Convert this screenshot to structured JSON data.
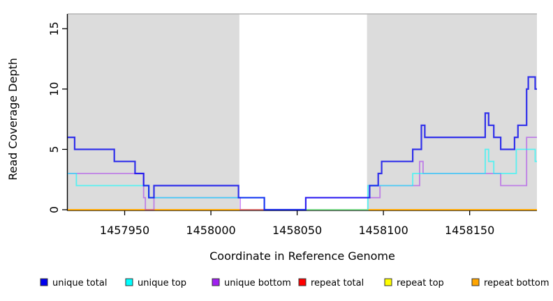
{
  "figure": {
    "xlabel": "Coordinate in Reference Genome",
    "ylabel": "Read Coverage Depth"
  },
  "chart_data": {
    "type": "line",
    "subtype": "step-coverage",
    "title": "",
    "xlabel": "Coordinate in Reference Genome",
    "ylabel": "Read Coverage Depth",
    "xlim": [
      1457917,
      1458189
    ],
    "ylim": [
      0,
      16.3
    ],
    "x_ticks": [
      1457950,
      1458000,
      1458050,
      1458100,
      1458150
    ],
    "y_ticks": [
      0,
      5,
      10,
      15
    ],
    "grid": false,
    "background_color": "#ffffff",
    "shaded_region_color": "#DCDCDC",
    "shaded_regions": [
      {
        "name": "left-shaded-region",
        "x_start": 1457917,
        "x_end": 1458016.5
      },
      {
        "name": "right-shaded-region",
        "x_start": 1458090.5,
        "x_end": 1458189
      }
    ],
    "series": [
      {
        "name": "repeat total",
        "color": "#FF0000",
        "opacity": 0.9,
        "width": 1.6,
        "steps": [
          [
            1457917,
            0
          ]
        ]
      },
      {
        "name": "repeat top",
        "color": "#FFFF00",
        "opacity": 0.9,
        "width": 1.6,
        "steps": [
          [
            1457917,
            0
          ]
        ]
      },
      {
        "name": "repeat bottom",
        "color": "#FFA500",
        "opacity": 0.95,
        "width": 2,
        "steps": [
          [
            1457917,
            0
          ]
        ]
      },
      {
        "name": "unique bottom",
        "color": "#A020F0",
        "opacity": 0.5,
        "width": 1.8,
        "steps": [
          [
            1457917,
            3
          ],
          [
            1457961,
            1
          ],
          [
            1457962,
            0
          ],
          [
            1457967,
            1
          ],
          [
            1458017,
            0
          ],
          [
            1458055,
            1
          ],
          [
            1458098,
            2
          ],
          [
            1458121,
            4
          ],
          [
            1458123,
            3
          ],
          [
            1458168,
            2
          ],
          [
            1458183,
            6
          ]
        ]
      },
      {
        "name": "unique top",
        "color": "#00FFFF",
        "opacity": 0.6,
        "width": 1.8,
        "steps": [
          [
            1457917,
            3
          ],
          [
            1457922,
            2
          ],
          [
            1457964,
            1
          ],
          [
            1458031,
            0
          ],
          [
            1458091,
            2
          ],
          [
            1458117,
            3
          ],
          [
            1458159,
            5
          ],
          [
            1458161,
            4
          ],
          [
            1458164,
            3
          ],
          [
            1458177,
            5
          ],
          [
            1458188,
            4
          ]
        ]
      },
      {
        "name": "unique total",
        "color": "#0000EE",
        "opacity": 0.78,
        "width": 2.2,
        "steps": [
          [
            1457917,
            6
          ],
          [
            1457921,
            5
          ],
          [
            1457944,
            4
          ],
          [
            1457956,
            3
          ],
          [
            1457961,
            2
          ],
          [
            1457964,
            1
          ],
          [
            1457967,
            2
          ],
          [
            1458016,
            1
          ],
          [
            1458031,
            0
          ],
          [
            1458055,
            1
          ],
          [
            1458092,
            2
          ],
          [
            1458097,
            3
          ],
          [
            1458099,
            4
          ],
          [
            1458117,
            5
          ],
          [
            1458122,
            7
          ],
          [
            1458124,
            6
          ],
          [
            1458159,
            8
          ],
          [
            1458161,
            7
          ],
          [
            1458164,
            6
          ],
          [
            1458168,
            5
          ],
          [
            1458176,
            6
          ],
          [
            1458178,
            7
          ],
          [
            1458183,
            10
          ],
          [
            1458184,
            11
          ],
          [
            1458188,
            10
          ]
        ]
      }
    ],
    "legend": {
      "position": "bottom",
      "entries": [
        {
          "label": "unique total",
          "swatch": "#0000EE"
        },
        {
          "label": "unique top",
          "swatch": "#00FFFF"
        },
        {
          "label": "unique bottom",
          "swatch": "#A020F0"
        },
        {
          "label": "repeat total",
          "swatch": "#FF0000"
        },
        {
          "label": "repeat top",
          "swatch": "#FFFF00"
        },
        {
          "label": "repeat bottom",
          "swatch": "#FFA500"
        }
      ]
    }
  }
}
